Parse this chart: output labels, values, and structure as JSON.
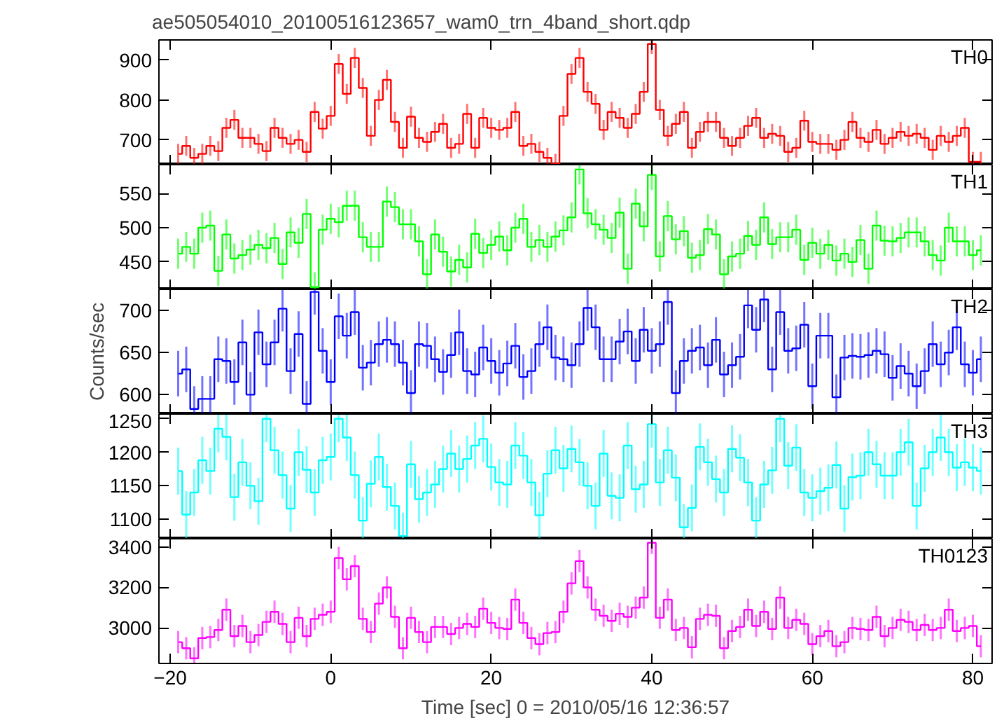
{
  "chart_data": [
    {
      "type": "step",
      "title": "ae505054010_20100516123657_wam0_trn_4band_short.qdp",
      "tick_labels": "y",
      "xlim": [
        -21.4,
        82.4
      ],
      "xticks": [
        -20,
        0,
        20,
        40,
        60,
        80
      ],
      "ylim": [
        638,
        950
      ],
      "yticks": [
        700,
        800,
        900
      ],
      "x": [
        -19,
        -18,
        -17,
        -16,
        -15,
        -14,
        -13,
        -12,
        -11,
        -10,
        -9,
        -8,
        -7,
        -6,
        -5,
        -4,
        -3,
        -2,
        -1,
        0,
        1,
        2,
        3,
        4,
        5,
        6,
        7,
        8,
        9,
        10,
        11,
        12,
        13,
        14,
        15,
        16,
        17,
        18,
        19,
        20,
        21,
        22,
        23,
        24,
        25,
        26,
        27,
        28,
        29,
        30,
        31,
        32,
        33,
        34,
        35,
        36,
        37,
        38,
        39,
        40,
        41,
        42,
        43,
        44,
        45,
        46,
        47,
        48,
        49,
        50,
        51,
        52,
        53,
        54,
        55,
        56,
        57,
        58,
        59,
        60,
        61,
        62,
        63,
        64,
        65,
        66,
        67,
        68,
        69,
        70,
        71,
        72,
        73,
        74,
        75,
        76,
        77,
        78,
        79,
        80,
        81
      ],
      "series": [
        {
          "name": "TH0",
          "color": "#ff0000",
          "values": [
            665,
            685,
            655,
            665,
            685,
            672,
            730,
            750,
            705,
            705,
            690,
            672,
            730,
            705,
            690,
            700,
            670,
            770,
            728,
            760,
            890,
            815,
            905,
            830,
            710,
            800,
            850,
            745,
            680,
            758,
            705,
            695,
            720,
            740,
            680,
            690,
            765,
            680,
            755,
            730,
            725,
            730,
            770,
            685,
            690,
            670,
            655,
            640,
            760,
            865,
            905,
            820,
            790,
            725,
            770,
            755,
            730,
            765,
            820,
            940,
            775,
            710,
            740,
            770,
            680,
            720,
            745,
            745,
            705,
            685,
            705,
            735,
            755,
            705,
            715,
            710,
            670,
            680,
            748,
            695,
            690,
            690,
            675,
            700,
            745,
            705,
            695,
            725,
            690,
            705,
            720,
            710,
            715,
            705,
            675,
            710,
            695,
            710,
            730,
            645,
            645
          ],
          "errors": [
            25,
            25,
            25,
            25,
            25,
            25,
            25,
            25,
            25,
            25,
            25,
            25,
            25,
            25,
            25,
            25,
            25,
            25,
            25,
            25,
            25,
            25,
            25,
            25,
            25,
            25,
            25,
            25,
            25,
            25,
            25,
            25,
            25,
            25,
            25,
            25,
            25,
            25,
            25,
            25,
            25,
            25,
            25,
            25,
            25,
            25,
            25,
            25,
            25,
            25,
            25,
            25,
            25,
            25,
            25,
            25,
            25,
            25,
            25,
            25,
            25,
            25,
            25,
            25,
            25,
            25,
            25,
            25,
            25,
            25,
            25,
            25,
            25,
            25,
            25,
            25,
            25,
            25,
            25,
            25,
            25,
            25,
            25,
            25,
            25,
            25,
            25,
            25,
            25,
            25,
            25,
            25,
            25,
            25,
            25,
            25,
            25,
            25,
            25,
            25,
            25
          ]
        }
      ]
    },
    {
      "type": "step",
      "tick_labels": "y",
      "xlim": [
        -21.4,
        82.4
      ],
      "xticks": [
        -20,
        0,
        20,
        40,
        60,
        80
      ],
      "ylim": [
        410,
        592
      ],
      "yticks": [
        450,
        500,
        550
      ],
      "x": [
        -19,
        -18,
        -17,
        -16,
        -15,
        -14,
        -13,
        -12,
        -11,
        -10,
        -9,
        -8,
        -7,
        -6,
        -5,
        -4,
        -3,
        -2,
        -1,
        0,
        1,
        2,
        3,
        4,
        5,
        6,
        7,
        8,
        9,
        10,
        11,
        12,
        13,
        14,
        15,
        16,
        17,
        18,
        19,
        20,
        21,
        22,
        23,
        24,
        25,
        26,
        27,
        28,
        29,
        30,
        31,
        32,
        33,
        34,
        35,
        36,
        37,
        38,
        39,
        40,
        41,
        42,
        43,
        44,
        45,
        46,
        47,
        48,
        49,
        50,
        51,
        52,
        53,
        54,
        55,
        56,
        57,
        58,
        59,
        60,
        61,
        62,
        63,
        64,
        65,
        66,
        67,
        68,
        69,
        70,
        71,
        72,
        73,
        74,
        75,
        76,
        77,
        78,
        79,
        80,
        81
      ],
      "series": [
        {
          "name": "TH1",
          "color": "#00ff00",
          "values": [
            462,
            472,
            462,
            500,
            503,
            437,
            490,
            455,
            460,
            468,
            475,
            470,
            485,
            447,
            493,
            478,
            520,
            413,
            497,
            513,
            508,
            532,
            532,
            486,
            472,
            472,
            538,
            530,
            505,
            505,
            480,
            432,
            490,
            465,
            436,
            453,
            442,
            491,
            463,
            475,
            487,
            467,
            500,
            513,
            472,
            482,
            472,
            487,
            496,
            515,
            585,
            521,
            505,
            497,
            485,
            522,
            440,
            535,
            502,
            577,
            458,
            517,
            483,
            495,
            456,
            460,
            498,
            490,
            432,
            458,
            462,
            488,
            475,
            515,
            476,
            486,
            486,
            497,
            453,
            478,
            462,
            475,
            452,
            462,
            450,
            482,
            440,
            503,
            481,
            480,
            485,
            493,
            493,
            480,
            460,
            452,
            500,
            480,
            480,
            460,
            467
          ],
          "errors": [
            22,
            22,
            22,
            22,
            22,
            22,
            22,
            22,
            22,
            22,
            22,
            22,
            22,
            22,
            22,
            22,
            22,
            22,
            22,
            22,
            22,
            22,
            22,
            22,
            22,
            22,
            22,
            22,
            22,
            22,
            22,
            22,
            22,
            22,
            22,
            22,
            22,
            22,
            22,
            22,
            22,
            22,
            22,
            22,
            22,
            22,
            22,
            22,
            22,
            22,
            22,
            22,
            22,
            22,
            22,
            22,
            22,
            22,
            22,
            22,
            22,
            22,
            22,
            22,
            22,
            22,
            22,
            22,
            22,
            22,
            22,
            22,
            22,
            22,
            22,
            22,
            22,
            22,
            22,
            22,
            22,
            22,
            22,
            22,
            22,
            22,
            22,
            22,
            22,
            22,
            22,
            22,
            22,
            22,
            22,
            22,
            22,
            22,
            22,
            22,
            22
          ]
        }
      ]
    },
    {
      "type": "step",
      "ylabel": "Counts/sec",
      "tick_labels": "y",
      "xlim": [
        -21.4,
        82.4
      ],
      "xticks": [
        -20,
        0,
        20,
        40,
        60,
        80
      ],
      "ylim": [
        577,
        725
      ],
      "yticks": [
        600,
        650,
        700
      ],
      "x": [
        -19,
        -18,
        -17,
        -16,
        -15,
        -14,
        -13,
        -12,
        -11,
        -10,
        -9,
        -8,
        -7,
        -6,
        -5,
        -4,
        -3,
        -2,
        -1,
        0,
        1,
        2,
        3,
        4,
        5,
        6,
        7,
        8,
        9,
        10,
        11,
        12,
        13,
        14,
        15,
        16,
        17,
        18,
        19,
        20,
        21,
        22,
        23,
        24,
        25,
        26,
        27,
        28,
        29,
        30,
        31,
        32,
        33,
        34,
        35,
        36,
        37,
        38,
        39,
        40,
        41,
        42,
        43,
        44,
        45,
        46,
        47,
        48,
        49,
        50,
        51,
        52,
        53,
        54,
        55,
        56,
        57,
        58,
        59,
        60,
        61,
        62,
        63,
        64,
        65,
        66,
        67,
        68,
        69,
        70,
        71,
        72,
        73,
        74,
        75,
        76,
        77,
        78,
        79,
        80,
        81
      ],
      "series": [
        {
          "name": "TH2",
          "color": "#0000ff",
          "values": [
            625,
            630,
            583,
            595,
            595,
            642,
            640,
            615,
            662,
            600,
            674,
            636,
            662,
            702,
            628,
            672,
            589,
            722,
            652,
            615,
            693,
            670,
            698,
            632,
            638,
            660,
            665,
            660,
            638,
            602,
            660,
            658,
            642,
            627,
            647,
            674,
            628,
            624,
            656,
            640,
            626,
            637,
            658,
            621,
            628,
            660,
            680,
            644,
            642,
            635,
            660,
            703,
            680,
            642,
            642,
            663,
            675,
            640,
            677,
            652,
            660,
            710,
            602,
            640,
            652,
            656,
            635,
            665,
            624,
            635,
            645,
            706,
            677,
            713,
            630,
            698,
            652,
            655,
            683,
            610,
            670,
            670,
            597,
            644,
            646,
            645,
            647,
            652,
            648,
            620,
            634,
            625,
            610,
            628,
            660,
            636,
            650,
            680,
            636,
            626,
            642
          ],
          "errors": [
            27,
            27,
            27,
            27,
            27,
            27,
            27,
            27,
            27,
            27,
            27,
            27,
            27,
            27,
            27,
            27,
            27,
            27,
            27,
            27,
            27,
            27,
            27,
            27,
            27,
            27,
            27,
            27,
            27,
            27,
            27,
            27,
            27,
            27,
            27,
            27,
            27,
            27,
            27,
            27,
            27,
            27,
            27,
            27,
            27,
            27,
            27,
            27,
            27,
            27,
            27,
            27,
            27,
            27,
            27,
            27,
            27,
            27,
            27,
            27,
            27,
            27,
            27,
            27,
            27,
            27,
            27,
            27,
            27,
            27,
            27,
            27,
            27,
            27,
            27,
            27,
            27,
            27,
            27,
            27,
            27,
            27,
            27,
            27,
            27,
            27,
            27,
            27,
            27,
            27,
            27,
            27,
            27,
            27,
            27,
            27,
            27,
            27,
            27,
            27,
            27
          ]
        }
      ]
    },
    {
      "type": "step",
      "tick_labels": "y",
      "xlim": [
        -21.4,
        82.4
      ],
      "xticks": [
        -20,
        0,
        20,
        40,
        60,
        80
      ],
      "ylim": [
        1071,
        1257
      ],
      "yticks": [
        1100,
        1150,
        1200,
        1250
      ],
      "x": [
        -19,
        -18,
        -17,
        -16,
        -15,
        -14,
        -13,
        -12,
        -11,
        -10,
        -9,
        -8,
        -7,
        -6,
        -5,
        -4,
        -3,
        -2,
        -1,
        0,
        1,
        2,
        3,
        4,
        5,
        6,
        7,
        8,
        9,
        10,
        11,
        12,
        13,
        14,
        15,
        16,
        17,
        18,
        19,
        20,
        21,
        22,
        23,
        24,
        25,
        26,
        27,
        28,
        29,
        30,
        31,
        32,
        33,
        34,
        35,
        36,
        37,
        38,
        39,
        40,
        41,
        42,
        43,
        44,
        45,
        46,
        47,
        48,
        49,
        50,
        51,
        52,
        53,
        54,
        55,
        56,
        57,
        58,
        59,
        60,
        61,
        62,
        63,
        64,
        65,
        66,
        67,
        68,
        69,
        70,
        71,
        72,
        73,
        74,
        75,
        76,
        77,
        78,
        79,
        80,
        81
      ],
      "series": [
        {
          "name": "TH3",
          "color": "#00ffff",
          "values": [
            1172,
            1107,
            1140,
            1188,
            1172,
            1235,
            1223,
            1133,
            1185,
            1150,
            1127,
            1250,
            1203,
            1166,
            1116,
            1200,
            1174,
            1140,
            1188,
            1193,
            1250,
            1222,
            1166,
            1098,
            1153,
            1193,
            1148,
            1120,
            1075,
            1182,
            1130,
            1140,
            1152,
            1175,
            1198,
            1175,
            1190,
            1210,
            1220,
            1178,
            1155,
            1152,
            1210,
            1195,
            1155,
            1106,
            1168,
            1203,
            1176,
            1205,
            1185,
            1150,
            1120,
            1198,
            1135,
            1132,
            1210,
            1145,
            1152,
            1242,
            1155,
            1203,
            1162,
            1088,
            1117,
            1208,
            1185,
            1160,
            1140,
            1205,
            1192,
            1155,
            1098,
            1152,
            1173,
            1250,
            1180,
            1207,
            1140,
            1132,
            1142,
            1147,
            1181,
            1116,
            1163,
            1165,
            1200,
            1182,
            1165,
            1165,
            1200,
            1215,
            1120,
            1176,
            1200,
            1222,
            1200,
            1177,
            1185,
            1177,
            1172
          ],
          "errors": [
            35,
            35,
            35,
            35,
            35,
            35,
            35,
            35,
            35,
            35,
            35,
            35,
            35,
            35,
            35,
            35,
            35,
            35,
            35,
            35,
            35,
            35,
            35,
            35,
            35,
            35,
            35,
            35,
            35,
            35,
            35,
            35,
            35,
            35,
            35,
            35,
            35,
            35,
            35,
            35,
            35,
            35,
            35,
            35,
            35,
            35,
            35,
            35,
            35,
            35,
            35,
            35,
            35,
            35,
            35,
            35,
            35,
            35,
            35,
            35,
            35,
            35,
            35,
            35,
            35,
            35,
            35,
            35,
            35,
            35,
            35,
            35,
            35,
            35,
            35,
            35,
            35,
            35,
            35,
            35,
            35,
            35,
            35,
            35,
            35,
            35,
            35,
            35,
            35,
            35,
            35,
            35,
            35,
            35,
            35,
            35,
            35,
            35,
            35,
            35,
            35
          ]
        }
      ]
    },
    {
      "type": "step",
      "xlabel": "Time [sec] 0 = 2010/05/16 12:36:57",
      "xlim": [
        -21.4,
        82.4
      ],
      "xticks": [
        -20,
        0,
        20,
        40,
        60,
        80
      ],
      "ylim": [
        2825,
        3440
      ],
      "yticks": [
        3000,
        3200,
        3400
      ],
      "x": [
        -19,
        -18,
        -17,
        -16,
        -15,
        -14,
        -13,
        -12,
        -11,
        -10,
        -9,
        -8,
        -7,
        -6,
        -5,
        -4,
        -3,
        -2,
        -1,
        0,
        1,
        2,
        3,
        4,
        5,
        6,
        7,
        8,
        9,
        10,
        11,
        12,
        13,
        14,
        15,
        16,
        17,
        18,
        19,
        20,
        21,
        22,
        23,
        24,
        25,
        26,
        27,
        28,
        29,
        30,
        31,
        32,
        33,
        34,
        35,
        36,
        37,
        38,
        39,
        40,
        41,
        42,
        43,
        44,
        45,
        46,
        47,
        48,
        49,
        50,
        51,
        52,
        53,
        54,
        55,
        56,
        57,
        58,
        59,
        60,
        61,
        62,
        63,
        64,
        65,
        66,
        67,
        68,
        69,
        70,
        71,
        72,
        73,
        74,
        75,
        76,
        77,
        78,
        79,
        80,
        81
      ],
      "series": [
        {
          "name": "TH0123",
          "color": "#ff00ff",
          "values": [
            2930,
            2900,
            2850,
            2950,
            2955,
            2990,
            3090,
            2960,
            3010,
            2930,
            2965,
            3030,
            3080,
            3020,
            2930,
            3050,
            2960,
            3045,
            3065,
            3080,
            3345,
            3240,
            3305,
            3045,
            2980,
            3120,
            3200,
            3055,
            2900,
            3050,
            2980,
            2930,
            3005,
            3005,
            2970,
            3000,
            3020,
            3005,
            3095,
            3025,
            3000,
            2995,
            3140,
            3025,
            2950,
            2920,
            2975,
            2980,
            3080,
            3220,
            3330,
            3200,
            3090,
            3060,
            3035,
            3070,
            3055,
            3100,
            3150,
            3420,
            3050,
            3140,
            2990,
            3000,
            2905,
            3045,
            3065,
            3060,
            2900,
            2985,
            3005,
            3090,
            3010,
            3080,
            2995,
            3150,
            3000,
            3040,
            3020,
            2920,
            2960,
            2985,
            2910,
            2930,
            3000,
            2995,
            2990,
            3055,
            2960,
            3000,
            3040,
            3030,
            2990,
            3015,
            2990,
            3000,
            3090,
            2985,
            3000,
            3010,
            2910
          ],
          "errors": [
            55,
            55,
            55,
            55,
            55,
            55,
            55,
            55,
            55,
            55,
            55,
            55,
            55,
            55,
            55,
            55,
            55,
            55,
            55,
            55,
            55,
            55,
            55,
            55,
            55,
            55,
            55,
            55,
            55,
            55,
            55,
            55,
            55,
            55,
            55,
            55,
            55,
            55,
            55,
            55,
            55,
            55,
            55,
            55,
            55,
            55,
            55,
            55,
            55,
            55,
            55,
            55,
            55,
            55,
            55,
            55,
            55,
            55,
            55,
            55,
            55,
            55,
            55,
            55,
            55,
            55,
            55,
            55,
            55,
            55,
            55,
            55,
            55,
            55,
            55,
            55,
            55,
            55,
            55,
            55,
            55,
            55,
            55,
            55,
            55,
            55,
            55,
            55,
            55,
            55,
            55,
            55,
            55,
            55,
            55,
            55,
            55,
            55,
            55,
            55,
            55
          ]
        }
      ]
    }
  ]
}
